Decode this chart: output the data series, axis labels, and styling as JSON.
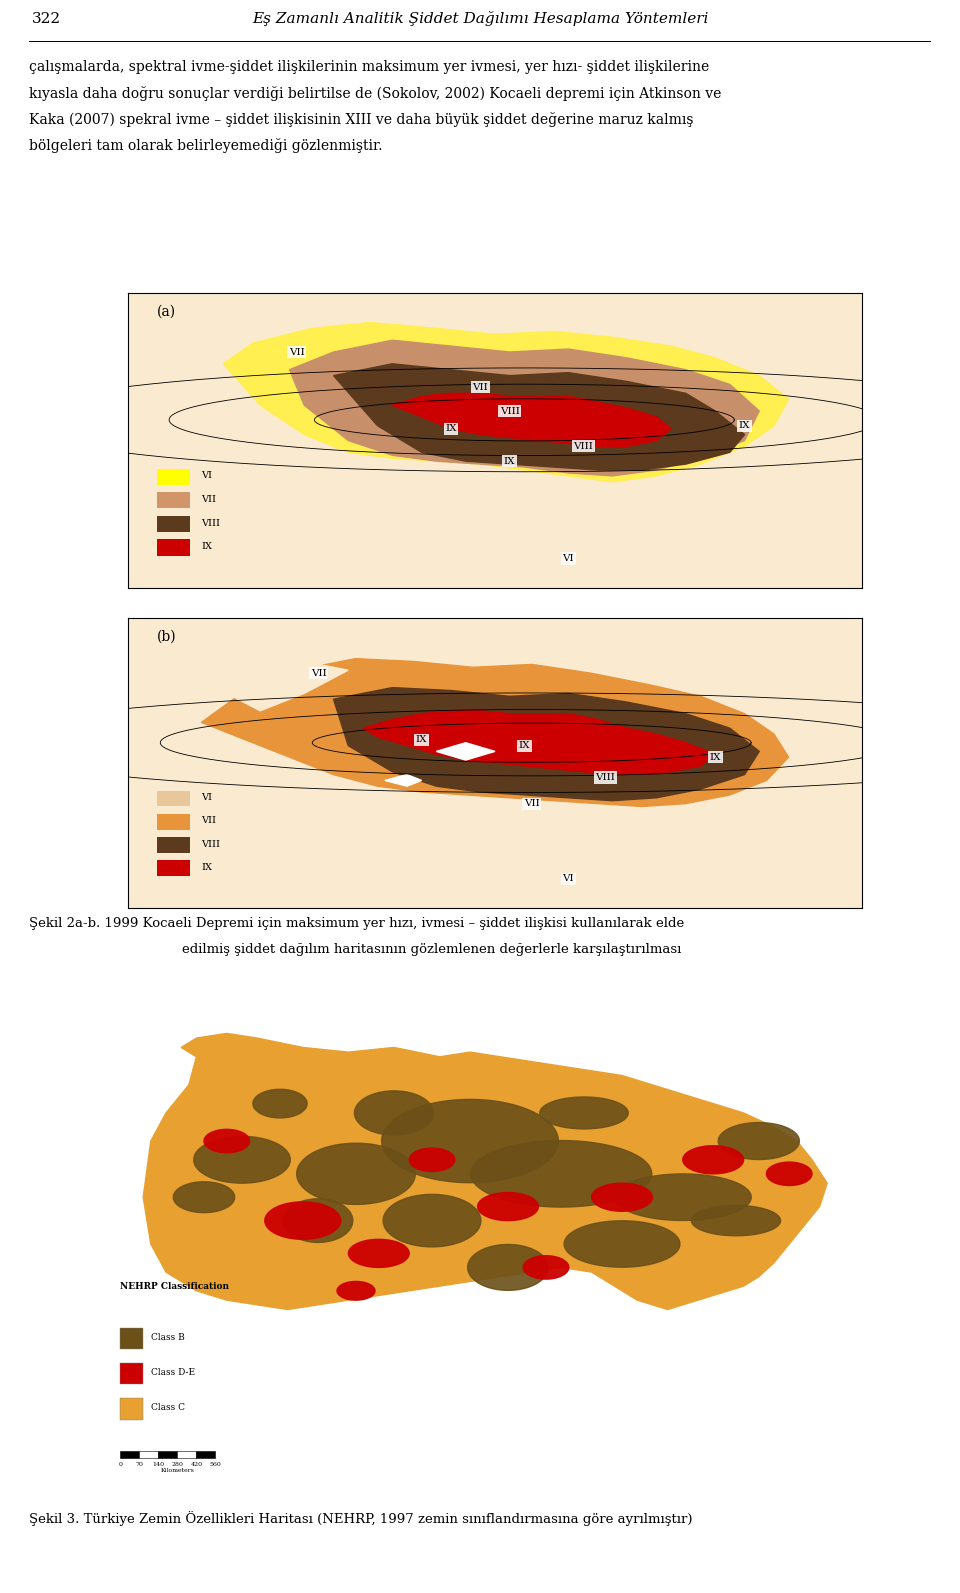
{
  "page_num": "322",
  "header": "Eş Zamanlı Analitik Şiddet Dağılımı Hesaplama Yöntemleri",
  "body_text_lines": [
    "çalışmalarda, spektral ivme-şiddet ilişkilerinin maksimum yer ivmesi, yer hızı- şiddet ilişkilerine",
    "kıyasla daha doğru sonuçlar verdiği belirtilse de (Sokolov, 2002) Kocaeli depremi için Atkinson ve",
    "Kaka (2007) spekral ivme – şiddet ilişkisinin XIII ve daha büyük şiddet değerine maruz kalmış",
    "bölgeleri tam olarak belirleyemediği gözlenmiştir."
  ],
  "fig_label_a": "(a)",
  "fig_label_b": "(b)",
  "caption_2ab_line1": "Şekil 2a-b. 1999 Kocaeli Depremi için maksimum yer hızı, ivmesi – şiddet ilişkisi kullanılarak elde",
  "caption_2ab_line2": "edilmiş şiddet dağılım haritasının gözlemlenen değerlerle karşılaştırılması",
  "caption_3": "Şekil 3. Türkiye Zemin Özellikleri Haritası (NEHRP, 1997 zemin sınıflandırmasına göre ayrılmıştır)",
  "legend_a_labels": [
    "VI",
    "VII",
    "VIII",
    "IX"
  ],
  "legend_a_colors": [
    "#FFFF00",
    "#D2956A",
    "#5C3A1E",
    "#CC0000"
  ],
  "legend_b_labels": [
    "VI",
    "VII",
    "VIII",
    "IX"
  ],
  "legend_b_colors": [
    "#E8C89A",
    "#E8943A",
    "#5C3A1E",
    "#CC0000"
  ],
  "nehrp_title": "NEHRP Classification",
  "nehrp_labels": [
    "Class B",
    "Class D-E",
    "Class C"
  ],
  "nehrp_colors": [
    "#6B5018",
    "#CC0000",
    "#E8A030"
  ],
  "bg_color": "#FFFFFF",
  "text_color": "#000000",
  "body_fontsize": 10,
  "header_fontsize": 11,
  "caption_fontsize": 9.5
}
